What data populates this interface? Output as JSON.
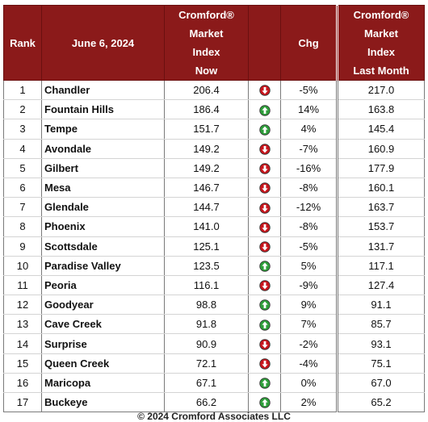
{
  "header": {
    "rank": "Rank",
    "date": "June 6, 2024",
    "now": [
      "Cromford®",
      "Market",
      "Index",
      "Now"
    ],
    "chg": "Chg",
    "last_month": [
      "Cromford®",
      "Market",
      "Index",
      "Last Month"
    ]
  },
  "colors": {
    "header_bg": "#8b1a1a",
    "up": "#2e9e3a",
    "down": "#c8161d"
  },
  "rows": [
    {
      "rank": "1",
      "city": "Chandler",
      "now": "206.4",
      "dir": "down",
      "icon": "down-arrow-icon",
      "chg": "-5%",
      "last": "217.0"
    },
    {
      "rank": "2",
      "city": "Fountain Hills",
      "now": "186.4",
      "dir": "up",
      "icon": "up-arrow-icon",
      "chg": "14%",
      "last": "163.8"
    },
    {
      "rank": "3",
      "city": "Tempe",
      "now": "151.7",
      "dir": "up",
      "icon": "up-arrow-icon",
      "chg": "4%",
      "last": "145.4"
    },
    {
      "rank": "4",
      "city": "Avondale",
      "now": "149.2",
      "dir": "down",
      "icon": "down-arrow-icon",
      "chg": "-7%",
      "last": "160.9"
    },
    {
      "rank": "5",
      "city": "Gilbert",
      "now": "149.2",
      "dir": "down",
      "icon": "down-arrow-icon",
      "chg": "-16%",
      "last": "177.9"
    },
    {
      "rank": "6",
      "city": "Mesa",
      "now": "146.7",
      "dir": "down",
      "icon": "down-arrow-icon",
      "chg": "-8%",
      "last": "160.1"
    },
    {
      "rank": "7",
      "city": "Glendale",
      "now": "144.7",
      "dir": "down",
      "icon": "down-arrow-icon",
      "chg": "-12%",
      "last": "163.7"
    },
    {
      "rank": "8",
      "city": "Phoenix",
      "now": "141.0",
      "dir": "down",
      "icon": "down-arrow-icon",
      "chg": "-8%",
      "last": "153.7"
    },
    {
      "rank": "9",
      "city": "Scottsdale",
      "now": "125.1",
      "dir": "down",
      "icon": "down-arrow-icon",
      "chg": "-5%",
      "last": "131.7"
    },
    {
      "rank": "10",
      "city": "Paradise Valley",
      "now": "123.5",
      "dir": "up",
      "icon": "up-arrow-icon",
      "chg": "5%",
      "last": "117.1"
    },
    {
      "rank": "11",
      "city": "Peoria",
      "now": "116.1",
      "dir": "down",
      "icon": "down-arrow-icon",
      "chg": "-9%",
      "last": "127.4"
    },
    {
      "rank": "12",
      "city": "Goodyear",
      "now": "98.8",
      "dir": "up",
      "icon": "up-arrow-icon",
      "chg": "9%",
      "last": "91.1"
    },
    {
      "rank": "13",
      "city": "Cave Creek",
      "now": "91.8",
      "dir": "up",
      "icon": "up-arrow-icon",
      "chg": "7%",
      "last": "85.7"
    },
    {
      "rank": "14",
      "city": "Surprise",
      "now": "90.9",
      "dir": "down",
      "icon": "down-arrow-icon",
      "chg": "-2%",
      "last": "93.1"
    },
    {
      "rank": "15",
      "city": "Queen Creek",
      "now": "72.1",
      "dir": "down",
      "icon": "down-arrow-icon",
      "chg": "-4%",
      "last": "75.1"
    },
    {
      "rank": "16",
      "city": "Maricopa",
      "now": "67.1",
      "dir": "up",
      "icon": "up-arrow-icon",
      "chg": "0%",
      "last": "67.0"
    },
    {
      "rank": "17",
      "city": "Buckeye",
      "now": "66.2",
      "dir": "up",
      "icon": "up-arrow-icon",
      "chg": "2%",
      "last": "65.2"
    }
  ],
  "footer": "© 2024 Cromford Associates LLC"
}
